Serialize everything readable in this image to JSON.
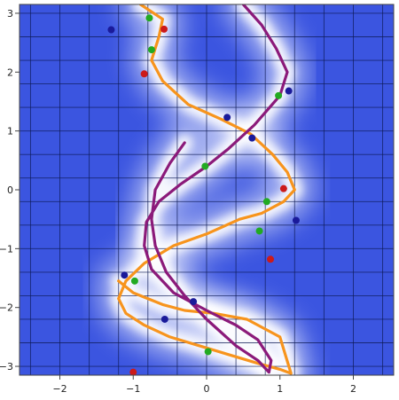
{
  "chart_data": {
    "type": "line",
    "title": "",
    "xlabel": "",
    "ylabel": "",
    "xlim": [
      -2.55,
      2.55
    ],
    "ylim": [
      -3.15,
      3.15
    ],
    "x_ticks": [
      -2,
      -1,
      0,
      1,
      2
    ],
    "x_tick_labels": [
      "−2",
      "−1",
      "0",
      "1",
      "2"
    ],
    "y_ticks": [
      -3,
      -2,
      -1,
      0,
      1,
      2,
      3
    ],
    "y_tick_labels": [
      "−3",
      "−2",
      "−1",
      "0",
      "1",
      "2",
      "3"
    ],
    "grid": true,
    "colors": {
      "background": "#3b55e0",
      "glow": "#ffffff",
      "grid": "#0d1a55",
      "curve_orange": "#f7941d",
      "curve_purple": "#8b1a7a",
      "marker_green": "#22aa22",
      "marker_red": "#cc1a1a",
      "marker_blue": "#1a1a9a"
    },
    "series": [
      {
        "color": "orange",
        "x": [
          -0.9,
          -0.6,
          -0.65,
          -0.75,
          -0.6,
          -0.25,
          0.2,
          0.6,
          0.9,
          1.1,
          1.2,
          1.05,
          0.75,
          0.45,
          0.0,
          -0.45,
          -0.85,
          -1.1,
          -1.2,
          -1.1,
          -0.85,
          -0.5,
          -0.1,
          0.3,
          0.7,
          1.0,
          1.15,
          1.0,
          0.55,
          0.1,
          -0.3,
          -0.6,
          -1.0,
          -1.2
        ],
        "y": [
          3.15,
          2.9,
          2.6,
          2.2,
          1.85,
          1.45,
          1.2,
          0.95,
          0.6,
          0.3,
          0.0,
          -0.2,
          -0.4,
          -0.5,
          -0.75,
          -0.95,
          -1.25,
          -1.55,
          -1.85,
          -2.1,
          -2.3,
          -2.5,
          -2.65,
          -2.8,
          -2.95,
          -3.05,
          -3.12,
          -2.5,
          -2.2,
          -2.1,
          -2.05,
          -1.95,
          -1.75,
          -1.55
        ]
      },
      {
        "color": "purple",
        "x": [
          0.5,
          0.75,
          0.95,
          1.1,
          1.0,
          0.65,
          0.3,
          0.0,
          -0.35,
          -0.65,
          -0.82,
          -0.85,
          -0.75,
          -0.45,
          0.0,
          0.4,
          0.7,
          0.88,
          0.85,
          0.7,
          0.4,
          0.0,
          -0.3,
          -0.55,
          -0.7,
          -0.75,
          -0.7,
          -0.5,
          -0.3
        ],
        "y": [
          3.15,
          2.8,
          2.4,
          2.0,
          1.6,
          1.1,
          0.7,
          0.4,
          0.1,
          -0.2,
          -0.55,
          -0.95,
          -1.35,
          -1.75,
          -2.05,
          -2.3,
          -2.55,
          -2.9,
          -3.1,
          -2.9,
          -2.65,
          -2.2,
          -1.8,
          -1.4,
          -0.95,
          -0.5,
          0.0,
          0.45,
          0.8
        ]
      }
    ],
    "markers": {
      "green": [
        [
          -0.78,
          2.92
        ],
        [
          -0.75,
          2.38
        ],
        [
          0.98,
          1.6
        ],
        [
          -0.02,
          0.4
        ],
        [
          0.82,
          -0.2
        ],
        [
          0.72,
          -0.7
        ],
        [
          -0.98,
          -1.55
        ],
        [
          0.02,
          -2.75
        ]
      ],
      "red": [
        [
          -0.58,
          2.73
        ],
        [
          -0.85,
          1.97
        ],
        [
          1.05,
          0.02
        ],
        [
          0.87,
          -1.18
        ],
        [
          -1.0,
          -3.1
        ]
      ],
      "blue": [
        [
          -1.3,
          2.72
        ],
        [
          1.12,
          1.68
        ],
        [
          0.28,
          1.23
        ],
        [
          0.62,
          0.88
        ],
        [
          1.22,
          -0.52
        ],
        [
          -1.12,
          -1.45
        ],
        [
          -0.57,
          -2.2
        ],
        [
          -0.18,
          -1.9
        ]
      ]
    }
  }
}
